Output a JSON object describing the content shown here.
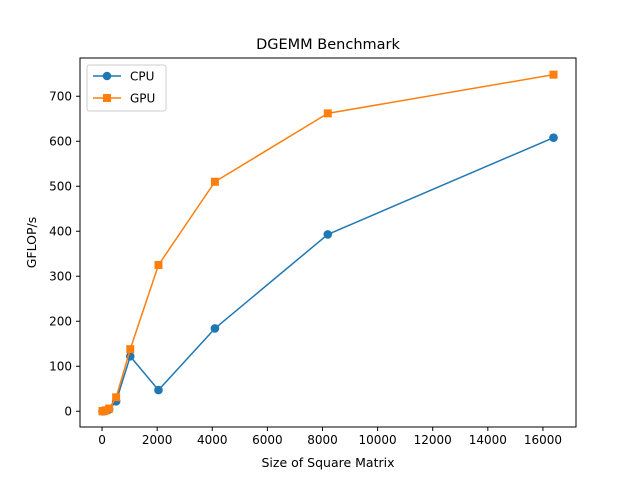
{
  "chart_data": {
    "type": "line",
    "title": "DGEMM Benchmark",
    "xlabel": "Size of Square Matrix",
    "ylabel": "GFLOP/s",
    "xlim": [
      -800,
      17200
    ],
    "ylim": [
      -35,
      785
    ],
    "xticks": [
      0,
      2000,
      4000,
      6000,
      8000,
      10000,
      12000,
      14000,
      16000
    ],
    "yticks": [
      0,
      100,
      200,
      300,
      400,
      500,
      600,
      700
    ],
    "grid": false,
    "legend_position": "top-left",
    "x": [
      16,
      32,
      64,
      128,
      256,
      512,
      1024,
      2048,
      4096,
      8192,
      16384
    ],
    "series": [
      {
        "name": "CPU",
        "color": "#1f77b4",
        "marker": "circle",
        "values": [
          0.1,
          0.2,
          0.5,
          1.5,
          4,
          22,
          122,
          47,
          184,
          393,
          608
        ]
      },
      {
        "name": "GPU",
        "color": "#ff7f0e",
        "marker": "square",
        "values": [
          0.1,
          0.2,
          0.5,
          2,
          6,
          31,
          138,
          325,
          510,
          662,
          748
        ]
      }
    ]
  }
}
